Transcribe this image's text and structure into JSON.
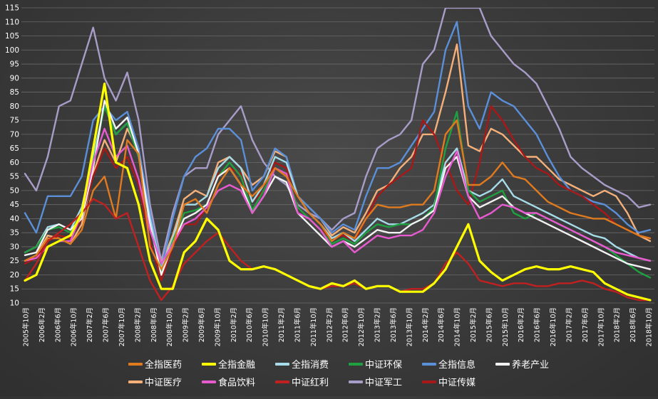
{
  "chart_data": {
    "type": "line",
    "title": "",
    "xlabel": "",
    "ylabel": "",
    "ylim": [
      10,
      115
    ],
    "yticks": [
      10,
      15,
      20,
      25,
      30,
      35,
      40,
      45,
      50,
      55,
      60,
      65,
      70,
      75,
      80,
      85,
      90,
      95,
      100,
      105,
      110,
      115
    ],
    "grid": true,
    "legend_position": "bottom",
    "xticks": [
      "2005年10月",
      "2006年2月",
      "2006年6月",
      "2006年10月",
      "2007年2月",
      "2007年6月",
      "2007年10月",
      "2008年2月",
      "2008年6月",
      "2008年10月",
      "2009年2月",
      "2009年6月",
      "2009年10月",
      "2010年2月",
      "2010年6月",
      "2010年10月",
      "2011年2月",
      "2011年6月",
      "2011年10月",
      "2012年2月",
      "2012年6月",
      "2012年10月",
      "2013年2月",
      "2013年6月",
      "2013年10月",
      "2014年2月",
      "2014年6月",
      "2014年10月",
      "2015年2月",
      "2015年6月",
      "2015年10月",
      "2016年2月",
      "2016年6月",
      "2016年10月",
      "2017年2月",
      "2017年6月",
      "2017年10月",
      "2018年2月",
      "2018年6月",
      "2018年10月"
    ],
    "series": [
      {
        "name": "全指医药",
        "color": "#e07a1f",
        "values": [
          25,
          27,
          33,
          33,
          31,
          36,
          50,
          55,
          40,
          68,
          63,
          30,
          22,
          30,
          45,
          47,
          42,
          52,
          58,
          52,
          48,
          52,
          58,
          55,
          48,
          42,
          38,
          32,
          35,
          33,
          40,
          45,
          44,
          44,
          45,
          45,
          50,
          70,
          75,
          52,
          52,
          55,
          60,
          55,
          54,
          50,
          46,
          44,
          42,
          41,
          40,
          40,
          38,
          36,
          34,
          33
        ]
      },
      {
        "name": "全指金融",
        "color": "#ffff00",
        "values": [
          18,
          20,
          30,
          32,
          34,
          42,
          65,
          88,
          60,
          58,
          45,
          25,
          15,
          15,
          28,
          32,
          40,
          36,
          25,
          22,
          22,
          23,
          22,
          20,
          18,
          16,
          15,
          17,
          16,
          18,
          15,
          16,
          16,
          14,
          14,
          14,
          17,
          22,
          30,
          38,
          25,
          21,
          18,
          20,
          22,
          23,
          22,
          22,
          23,
          22,
          21,
          17,
          15,
          13,
          12,
          11
        ]
      },
      {
        "name": "全指消费",
        "color": "#a6dce8",
        "values": [
          28,
          30,
          37,
          38,
          36,
          44,
          62,
          80,
          70,
          74,
          62,
          40,
          22,
          33,
          45,
          45,
          48,
          58,
          62,
          58,
          46,
          52,
          62,
          60,
          48,
          42,
          38,
          33,
          35,
          32,
          36,
          40,
          38,
          38,
          40,
          42,
          45,
          60,
          65,
          50,
          48,
          50,
          54,
          48,
          46,
          44,
          42,
          40,
          38,
          36,
          34,
          33,
          30,
          28,
          26,
          25
        ]
      },
      {
        "name": "中证环保",
        "color": "#1fa040",
        "values": [
          28,
          30,
          36,
          37,
          35,
          42,
          60,
          80,
          70,
          74,
          62,
          38,
          21,
          32,
          42,
          43,
          45,
          55,
          60,
          55,
          43,
          50,
          58,
          56,
          44,
          40,
          36,
          31,
          33,
          31,
          35,
          38,
          37,
          38,
          38,
          40,
          44,
          65,
          78,
          50,
          46,
          48,
          50,
          42,
          40,
          42,
          40,
          38,
          36,
          34,
          32,
          30,
          27,
          24,
          21,
          19
        ]
      },
      {
        "name": "全指信息",
        "color": "#5b8fd8",
        "values": [
          42,
          35,
          48,
          48,
          48,
          55,
          75,
          80,
          75,
          78,
          65,
          42,
          22,
          40,
          55,
          62,
          65,
          72,
          72,
          68,
          50,
          55,
          65,
          62,
          48,
          44,
          40,
          35,
          38,
          36,
          48,
          58,
          58,
          60,
          66,
          72,
          78,
          100,
          110,
          80,
          72,
          85,
          82,
          80,
          75,
          70,
          62,
          55,
          50,
          48,
          46,
          45,
          42,
          38,
          35,
          36
        ]
      },
      {
        "name": "养老产业",
        "color": "#f2f2f2",
        "values": [
          27,
          28,
          36,
          38,
          36,
          40,
          58,
          82,
          72,
          76,
          63,
          38,
          20,
          31,
          40,
          42,
          45,
          55,
          58,
          52,
          42,
          48,
          55,
          53,
          42,
          38,
          34,
          30,
          32,
          30,
          33,
          36,
          35,
          35,
          38,
          40,
          43,
          58,
          62,
          48,
          44,
          46,
          48,
          44,
          42,
          40,
          38,
          36,
          34,
          32,
          30,
          28,
          26,
          24,
          23,
          22
        ]
      },
      {
        "name": "中证医疗",
        "color": "#f5b07a",
        "values": [
          25,
          27,
          34,
          33,
          31,
          38,
          56,
          68,
          60,
          72,
          64,
          38,
          24,
          34,
          47,
          50,
          48,
          60,
          62,
          58,
          52,
          55,
          64,
          62,
          48,
          44,
          40,
          34,
          37,
          35,
          42,
          50,
          52,
          58,
          62,
          70,
          70,
          85,
          102,
          66,
          64,
          72,
          70,
          66,
          62,
          62,
          58,
          54,
          52,
          50,
          48,
          50,
          48,
          42,
          34,
          32
        ]
      },
      {
        "name": "食品饮料",
        "color": "#e85ad0",
        "values": [
          25,
          26,
          30,
          32,
          32,
          42,
          60,
          72,
          62,
          66,
          54,
          36,
          24,
          31,
          38,
          40,
          44,
          50,
          52,
          50,
          42,
          48,
          58,
          56,
          42,
          40,
          36,
          30,
          32,
          28,
          31,
          34,
          33,
          34,
          34,
          36,
          42,
          55,
          64,
          48,
          40,
          42,
          45,
          44,
          42,
          42,
          40,
          38,
          36,
          34,
          32,
          30,
          28,
          27,
          26,
          25
        ]
      },
      {
        "name": "中证红利",
        "color": "#c02020",
        "values": [
          18,
          24,
          32,
          35,
          38,
          42,
          47,
          45,
          40,
          42,
          30,
          18,
          11,
          16,
          24,
          28,
          32,
          35,
          30,
          25,
          22,
          23,
          22,
          20,
          18,
          16,
          15,
          16,
          16,
          17,
          15,
          16,
          16,
          14,
          15,
          15,
          17,
          24,
          28,
          24,
          18,
          17,
          16,
          17,
          17,
          16,
          16,
          17,
          17,
          18,
          17,
          15,
          14,
          12,
          11,
          11
        ]
      },
      {
        "name": "中证军工",
        "color": "#a89cc8",
        "values": [
          56,
          50,
          62,
          80,
          82,
          95,
          108,
          90,
          82,
          92,
          75,
          45,
          25,
          42,
          55,
          58,
          58,
          70,
          75,
          80,
          68,
          60,
          55,
          52,
          45,
          42,
          40,
          36,
          40,
          42,
          55,
          65,
          68,
          70,
          75,
          95,
          100,
          115,
          115,
          115,
          115,
          105,
          100,
          95,
          92,
          88,
          80,
          72,
          62,
          58,
          55,
          52,
          50,
          48,
          44,
          45
        ]
      },
      {
        "name": "中证传媒",
        "color": "#a81818",
        "values": [
          24,
          26,
          32,
          34,
          33,
          40,
          55,
          65,
          58,
          62,
          52,
          32,
          18,
          30,
          38,
          38,
          44,
          56,
          58,
          56,
          46,
          50,
          60,
          58,
          44,
          40,
          36,
          33,
          34,
          32,
          40,
          48,
          52,
          55,
          58,
          75,
          70,
          60,
          50,
          45,
          60,
          80,
          75,
          68,
          62,
          58,
          56,
          52,
          50,
          48,
          45,
          42,
          38,
          36,
          34,
          33
        ]
      }
    ]
  }
}
